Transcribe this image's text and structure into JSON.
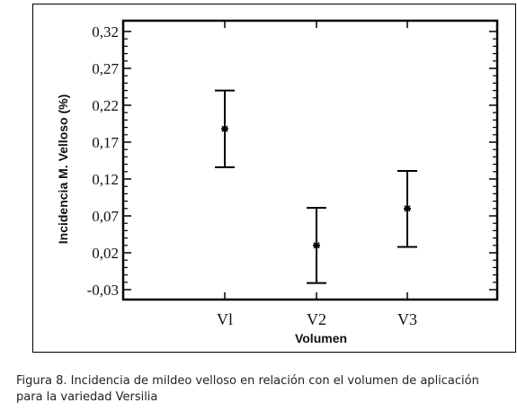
{
  "chart_data": {
    "type": "scatter",
    "ylabel": "Incidencia M. Velloso (%)",
    "xlabel": "Volumen",
    "categories": [
      "Vl",
      "V2",
      "V3"
    ],
    "ylim": [
      -0.03,
      0.32
    ],
    "yticks": [
      "0,32",
      "0,27",
      "0,22",
      "0,17",
      "0,12",
      "0,07",
      "0,02",
      "-0,03"
    ],
    "ytick_values": [
      0.32,
      0.27,
      0.22,
      0.17,
      0.12,
      0.07,
      0.02,
      -0.03
    ],
    "points": [
      {
        "category": "Vl",
        "mean": 0.188,
        "lower": 0.136,
        "upper": 0.24
      },
      {
        "category": "V2",
        "mean": 0.03,
        "lower": -0.021,
        "upper": 0.081
      },
      {
        "category": "V3",
        "mean": 0.08,
        "lower": 0.028,
        "upper": 0.131
      }
    ],
    "marker": "*",
    "grid": false
  },
  "caption": "Figura 8. Incidencia de mildeo velloso en relación con el volumen de aplicación para la variedad Versilia"
}
